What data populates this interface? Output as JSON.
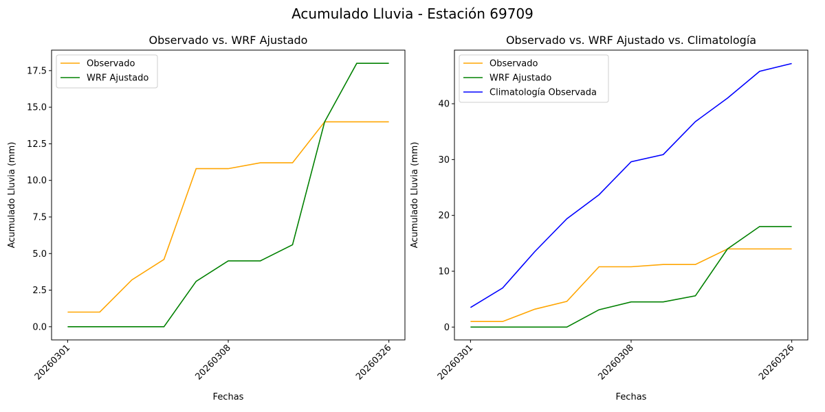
{
  "title": "Acumulado Lluvia - Estación 69709",
  "chart_data": [
    {
      "type": "line",
      "title": "Observado vs. WRF Ajustado",
      "xlabel": "Fechas",
      "ylabel": "Acumulado Lluvia (mm)",
      "x": [
        0,
        1,
        2,
        3,
        4,
        5,
        6,
        7,
        8,
        9,
        10
      ],
      "xticks": [
        {
          "x": 0,
          "label": "20260301"
        },
        {
          "x": 5,
          "label": "20260308"
        },
        {
          "x": 10,
          "label": "20260326"
        }
      ],
      "xlim": [
        -0.5,
        10.5
      ],
      "ylim": [
        -0.9,
        18.9
      ],
      "yticks": [
        0.0,
        2.5,
        5.0,
        7.5,
        10.0,
        12.5,
        15.0,
        17.5
      ],
      "ytick_labels": [
        "0.0",
        "2.5",
        "5.0",
        "7.5",
        "10.0",
        "12.5",
        "15.0",
        "17.5"
      ],
      "legend_position": "upper-left",
      "series": [
        {
          "name": "Observado",
          "color": "#FFA500",
          "values": [
            1.0,
            1.0,
            3.2,
            4.6,
            10.8,
            10.8,
            11.2,
            11.2,
            14.0,
            14.0,
            14.0
          ]
        },
        {
          "name": "WRF Ajustado",
          "color": "#008000",
          "values": [
            0.0,
            0.0,
            0.0,
            0.0,
            3.1,
            4.5,
            4.5,
            5.6,
            14.0,
            18.0,
            18.0
          ]
        }
      ]
    },
    {
      "type": "line",
      "title": "Observado vs. WRF Ajustado vs. Climatología",
      "xlabel": "Fechas",
      "ylabel": "Acumulado Lluvia (mm)",
      "x": [
        0,
        1,
        2,
        3,
        4,
        5,
        6,
        7,
        8,
        9,
        10
      ],
      "xticks": [
        {
          "x": 0,
          "label": "20260301"
        },
        {
          "x": 5,
          "label": "20260308"
        },
        {
          "x": 10,
          "label": "20260326"
        }
      ],
      "xlim": [
        -0.5,
        10.5
      ],
      "ylim": [
        -2.3,
        49.6
      ],
      "yticks": [
        0,
        10,
        20,
        30,
        40
      ],
      "ytick_labels": [
        "0",
        "10",
        "20",
        "30",
        "40"
      ],
      "legend_position": "upper-left",
      "series": [
        {
          "name": "Observado",
          "color": "#FFA500",
          "values": [
            1.0,
            1.0,
            3.2,
            4.6,
            10.8,
            10.8,
            11.2,
            11.2,
            14.0,
            14.0,
            14.0
          ]
        },
        {
          "name": "WRF Ajustado",
          "color": "#008000",
          "values": [
            0.0,
            0.0,
            0.0,
            0.0,
            3.1,
            4.5,
            4.5,
            5.6,
            14.0,
            18.0,
            18.0
          ]
        },
        {
          "name": "Climatología Observada",
          "color": "#0000FF",
          "values": [
            3.5,
            7.0,
            13.5,
            19.4,
            23.7,
            29.6,
            30.9,
            36.8,
            41.0,
            45.8,
            47.2
          ]
        }
      ]
    }
  ]
}
